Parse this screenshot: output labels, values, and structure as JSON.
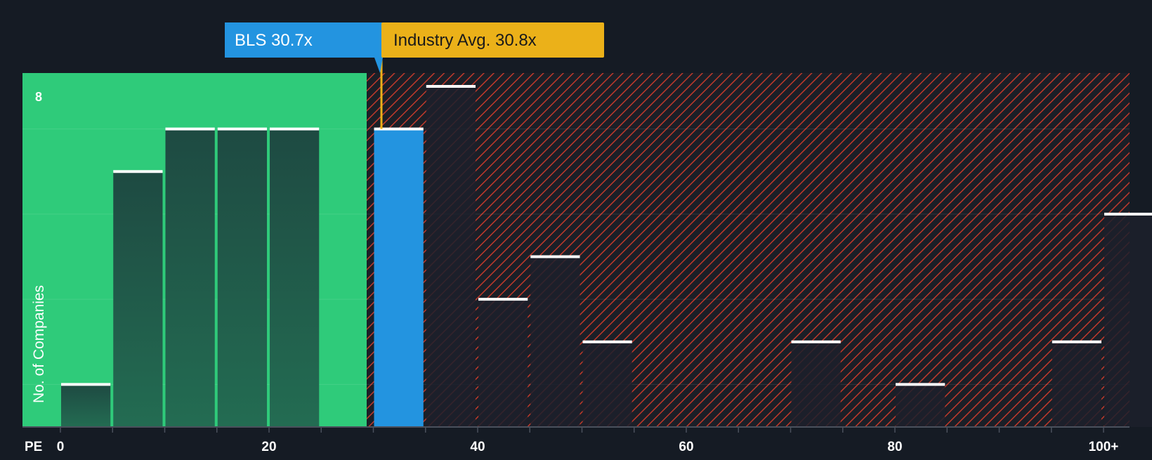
{
  "chart_data": {
    "type": "bar",
    "xlabel": "PE",
    "ylabel": "No. of Companies",
    "x_ticks": [
      "0",
      "20",
      "40",
      "60",
      "80",
      "100+"
    ],
    "y_ticks": [
      "8"
    ],
    "ylim": [
      0,
      8
    ],
    "bin_width": 5,
    "bins": [
      {
        "start": 0,
        "value": 1
      },
      {
        "start": 5,
        "value": 6
      },
      {
        "start": 10,
        "value": 7
      },
      {
        "start": 15,
        "value": 7
      },
      {
        "start": 20,
        "value": 7
      },
      {
        "start": 25,
        "value": 0
      },
      {
        "start": 30,
        "value": 7
      },
      {
        "start": 35,
        "value": 8
      },
      {
        "start": 40,
        "value": 3
      },
      {
        "start": 45,
        "value": 4
      },
      {
        "start": 50,
        "value": 2
      },
      {
        "start": 55,
        "value": 0
      },
      {
        "start": 60,
        "value": 0
      },
      {
        "start": 65,
        "value": 0
      },
      {
        "start": 70,
        "value": 2
      },
      {
        "start": 75,
        "value": 0
      },
      {
        "start": 80,
        "value": 1
      },
      {
        "start": 85,
        "value": 0
      },
      {
        "start": 90,
        "value": 0
      },
      {
        "start": 95,
        "value": 2
      },
      {
        "start": 100,
        "value": 5
      }
    ],
    "company": {
      "label": "BLS 30.7x",
      "value": 30.7
    },
    "industry": {
      "label": "Industry Avg. 30.8x",
      "value": 30.8
    },
    "grid": true,
    "colors": {
      "background": "#151b24",
      "undervalued_zone": "#2fcb7a",
      "company_bar": "#2394e0",
      "industry_badge": "#ebb119",
      "overvalued_hatch": "#c0392b"
    }
  }
}
